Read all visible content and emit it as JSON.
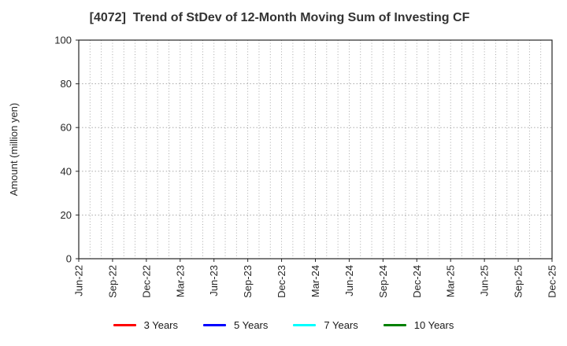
{
  "chart_data": {
    "type": "line",
    "title": "[4072]  Trend of StDev of 12-Month Moving Sum of Investing CF",
    "xlabel": "",
    "ylabel": "Amount (million yen)",
    "ylim": [
      0,
      100
    ],
    "yticks": [
      0,
      20,
      40,
      60,
      80,
      100
    ],
    "categories": [
      "Jun-22",
      "Sep-22",
      "Dec-22",
      "Mar-23",
      "Jun-23",
      "Sep-23",
      "Dec-23",
      "Mar-24",
      "Jun-24",
      "Sep-24",
      "Dec-24",
      "Mar-25",
      "Jun-25",
      "Sep-25",
      "Dec-25"
    ],
    "x_months_total": 42,
    "x_label_interval_months": 3,
    "grid": true,
    "grid_style": "dotted",
    "legend_position": "bottom-center",
    "series": [
      {
        "name": "3 Years",
        "color": "#ff0000",
        "values": []
      },
      {
        "name": "5 Years",
        "color": "#0000ff",
        "values": []
      },
      {
        "name": "7 Years",
        "color": "#00ffff",
        "values": []
      },
      {
        "name": "10 Years",
        "color": "#008000",
        "values": []
      }
    ],
    "colors": {
      "axis": "#262626",
      "grid": "#9e9e9e",
      "text": "#333333",
      "background": "#ffffff"
    }
  }
}
